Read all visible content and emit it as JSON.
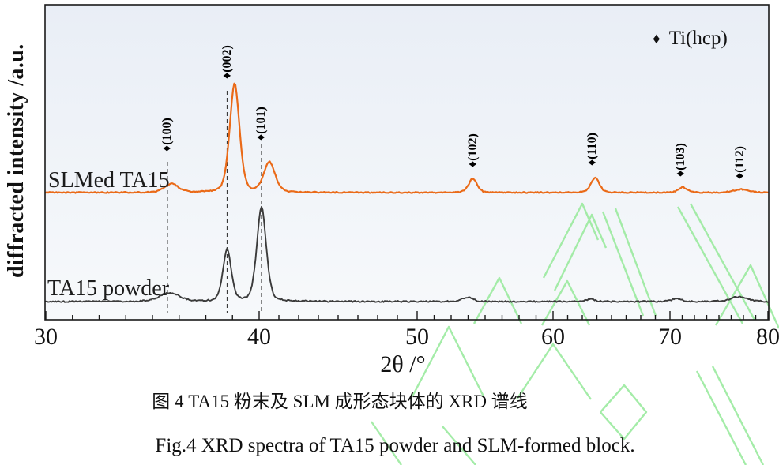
{
  "figure": {
    "ylabel": "diffracted intensity /a.u.",
    "xlabel": "2θ /°",
    "legend": {
      "marker": "♦",
      "label": "Ti(hcp)"
    },
    "caption_zh": "图 4 TA15 粉末及 SLM 成形态块体的 XRD 谱线",
    "caption_en": "Fig.4 XRD spectra of TA15 powder and SLM-formed block."
  },
  "colors": {
    "slm_curve": "#ea6a18",
    "powder_curve": "#3b3b3b",
    "frame": "#1a1a1a",
    "plot_bg_top": "#e9eef6",
    "plot_bg_bottom": "#f7f9fb",
    "watermark": "#9bea9f",
    "guide": "#3a3a3a"
  },
  "chart_data": {
    "type": "line",
    "title": "",
    "xlabel": "2θ /°",
    "ylabel": "diffracted intensity /a.u.",
    "xlim": [
      30,
      80
    ],
    "x_ticks": [
      30,
      40,
      50,
      60,
      70,
      80
    ],
    "grid": false,
    "legend_position": "top-right",
    "phase": "Ti(hcp)",
    "peak_labels": [
      {
        "hkl": "(100)",
        "two_theta": 35.7,
        "dashed_guide": true
      },
      {
        "hkl": "(002)",
        "two_theta": 38.5,
        "dashed_guide": true
      },
      {
        "hkl": "(101)",
        "two_theta": 40.15,
        "dashed_guide": true
      },
      {
        "hkl": "(102)",
        "two_theta": 54.1,
        "dashed_guide": false
      },
      {
        "hkl": "(110)",
        "two_theta": 63.4,
        "dashed_guide": false
      },
      {
        "hkl": "(103)",
        "two_theta": 71.1,
        "dashed_guide": false
      },
      {
        "hkl": "(112)",
        "two_theta": 77.2,
        "dashed_guide": false
      }
    ],
    "series": [
      {
        "name": "SLMed TA15",
        "peaks": [
          {
            "two_theta": 35.9,
            "rel_intensity": 8
          },
          {
            "two_theta": 38.85,
            "rel_intensity": 100
          },
          {
            "two_theta": 40.65,
            "rel_intensity": 27.5
          },
          {
            "two_theta": 54.1,
            "rel_intensity": 13
          },
          {
            "two_theta": 63.6,
            "rel_intensity": 13.8
          },
          {
            "two_theta": 71.3,
            "rel_intensity": 5
          },
          {
            "two_theta": 77.3,
            "rel_intensity": 3
          }
        ]
      },
      {
        "name": "TA15 powder",
        "peaks": [
          {
            "two_theta": 35.8,
            "rel_intensity": 9.2
          },
          {
            "two_theta": 38.5,
            "rel_intensity": 55
          },
          {
            "two_theta": 40.15,
            "rel_intensity": 100
          },
          {
            "two_theta": 53.7,
            "rel_intensity": 4.6
          },
          {
            "two_theta": 63.2,
            "rel_intensity": 2.5
          },
          {
            "two_theta": 70.7,
            "rel_intensity": 3.3
          },
          {
            "two_theta": 77.0,
            "rel_intensity": 5
          }
        ]
      }
    ]
  }
}
